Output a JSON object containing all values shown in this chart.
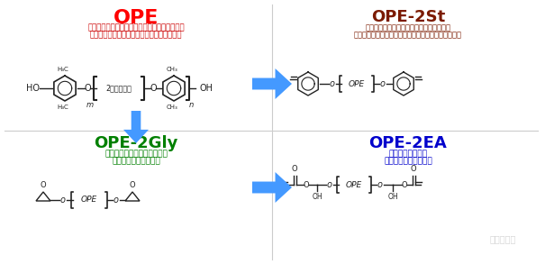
{
  "bg_color": "#ffffff",
  "title_ope": "OPE",
  "title_ope_color": "#ff0000",
  "subtitle_ope_line1": "（二官能ポリフェニレンエーテルオリゴマー）",
  "subtitle_ope_line2": "低誘電特性、耐湿性、汎用溶剤に可溶な樹脂",
  "subtitle_ope_color": "#cc0000",
  "title_2st": "OPE-2St",
  "title_2st_color": "#7b1a00",
  "subtitle_2st_line1": "（低誘電率、低誘電正接スチレン誘導体）",
  "subtitle_2st_line2": "超低誘電特性積層板、ビルドアップ層間絶縁材料用途",
  "subtitle_2st_color": "#7b1a00",
  "title_2gly": "OPE-2Gly",
  "title_2gly_color": "#008000",
  "subtitle_2gly_line1": "（低誘電性エポキシ誘導体）",
  "subtitle_2gly_line2": "低誘電特性積層板用途",
  "subtitle_2gly_color": "#008000",
  "title_2ea": "OPE-2EA",
  "title_2ea_color": "#0000cc",
  "subtitle_2ea_line1": "（光硬化性樹脂）",
  "subtitle_2ea_line2": "ソルダーレジスト用途",
  "subtitle_2ea_color": "#0000cc",
  "arrow_color": "#4499ff",
  "divider_color": "#cccccc",
  "struct_color": "#222222",
  "label_2kano": "2官能型コア",
  "watermark_text": "千郡高分子",
  "watermark_color": "#bbbbbb"
}
